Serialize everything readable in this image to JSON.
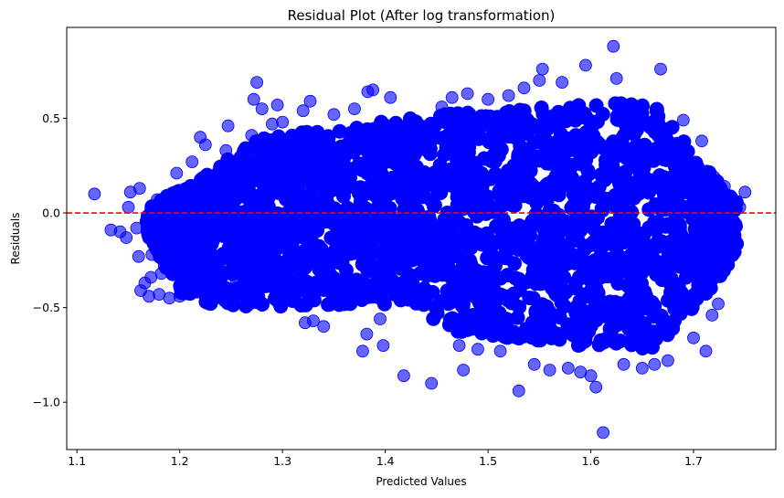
{
  "chart_data": {
    "type": "scatter",
    "title": "Residual Plot (After log transformation)",
    "xlabel": "Predicted Values",
    "ylabel": "Residuals",
    "xlim": [
      1.09,
      1.78
    ],
    "ylim": [
      -1.25,
      0.98
    ],
    "x_ticks": [
      1.1,
      1.2,
      1.3,
      1.4,
      1.5,
      1.6,
      1.7
    ],
    "x_tick_labels": [
      "1.1",
      "1.2",
      "1.3",
      "1.4",
      "1.5",
      "1.6",
      "1.7"
    ],
    "y_ticks": [
      -1.0,
      -0.5,
      0.0,
      0.5
    ],
    "y_tick_labels": [
      "−1.0",
      "−0.5",
      "0.0",
      "0.5"
    ],
    "grid": false,
    "marker_color": "#0000ff",
    "marker_opacity": 0.6,
    "reference_line": {
      "y": 0.0,
      "color": "#ff0000",
      "style": "dashed"
    },
    "points": [
      {
        "x": 1.117,
        "y": 0.1
      },
      {
        "x": 1.133,
        "y": -0.09
      },
      {
        "x": 1.142,
        "y": -0.1
      },
      {
        "x": 1.15,
        "y": 0.03
      },
      {
        "x": 1.148,
        "y": -0.13
      },
      {
        "x": 1.152,
        "y": 0.11
      },
      {
        "x": 1.158,
        "y": -0.08
      },
      {
        "x": 1.16,
        "y": -0.23
      },
      {
        "x": 1.161,
        "y": 0.13
      },
      {
        "x": 1.162,
        "y": -0.41
      },
      {
        "x": 1.166,
        "y": -0.37
      },
      {
        "x": 1.168,
        "y": -0.05
      },
      {
        "x": 1.17,
        "y": -0.44
      },
      {
        "x": 1.172,
        "y": -0.34
      },
      {
        "x": 1.173,
        "y": -0.22
      },
      {
        "x": 1.178,
        "y": 0.07
      },
      {
        "x": 1.18,
        "y": -0.43
      },
      {
        "x": 1.182,
        "y": -0.32
      },
      {
        "x": 1.185,
        "y": -0.28
      },
      {
        "x": 1.19,
        "y": -0.45
      },
      {
        "x": 1.197,
        "y": 0.21
      },
      {
        "x": 1.2,
        "y": -0.44
      },
      {
        "x": 1.205,
        "y": -0.16
      },
      {
        "x": 1.208,
        "y": -0.29
      },
      {
        "x": 1.212,
        "y": 0.27
      },
      {
        "x": 1.22,
        "y": 0.4
      },
      {
        "x": 1.225,
        "y": 0.36
      },
      {
        "x": 1.23,
        "y": 0.19
      },
      {
        "x": 1.245,
        "y": 0.33
      },
      {
        "x": 1.247,
        "y": 0.46
      },
      {
        "x": 1.255,
        "y": -0.36
      },
      {
        "x": 1.27,
        "y": 0.41
      },
      {
        "x": 1.272,
        "y": 0.6
      },
      {
        "x": 1.275,
        "y": 0.69
      },
      {
        "x": 1.28,
        "y": 0.55
      },
      {
        "x": 1.29,
        "y": 0.47
      },
      {
        "x": 1.295,
        "y": 0.57
      },
      {
        "x": 1.3,
        "y": 0.48
      },
      {
        "x": 1.32,
        "y": 0.54
      },
      {
        "x": 1.327,
        "y": 0.59
      },
      {
        "x": 1.322,
        "y": -0.58
      },
      {
        "x": 1.33,
        "y": -0.57
      },
      {
        "x": 1.34,
        "y": -0.6
      },
      {
        "x": 1.35,
        "y": 0.52
      },
      {
        "x": 1.37,
        "y": 0.55
      },
      {
        "x": 1.383,
        "y": 0.64
      },
      {
        "x": 1.388,
        "y": 0.65
      },
      {
        "x": 1.378,
        "y": -0.73
      },
      {
        "x": 1.382,
        "y": -0.64
      },
      {
        "x": 1.395,
        "y": -0.56
      },
      {
        "x": 1.398,
        "y": -0.7
      },
      {
        "x": 1.405,
        "y": 0.61
      },
      {
        "x": 1.418,
        "y": -0.86
      },
      {
        "x": 1.445,
        "y": -0.9
      },
      {
        "x": 1.455,
        "y": 0.56
      },
      {
        "x": 1.465,
        "y": 0.61
      },
      {
        "x": 1.472,
        "y": -0.7
      },
      {
        "x": 1.476,
        "y": -0.83
      },
      {
        "x": 1.48,
        "y": 0.63
      },
      {
        "x": 1.49,
        "y": -0.72
      },
      {
        "x": 1.5,
        "y": 0.6
      },
      {
        "x": 1.512,
        "y": -0.73
      },
      {
        "x": 1.52,
        "y": 0.62
      },
      {
        "x": 1.53,
        "y": -0.94
      },
      {
        "x": 1.535,
        "y": 0.66
      },
      {
        "x": 1.545,
        "y": -0.8
      },
      {
        "x": 1.55,
        "y": 0.7
      },
      {
        "x": 1.553,
        "y": 0.76
      },
      {
        "x": 1.56,
        "y": -0.83
      },
      {
        "x": 1.572,
        "y": 0.69
      },
      {
        "x": 1.578,
        "y": -0.82
      },
      {
        "x": 1.59,
        "y": -0.84
      },
      {
        "x": 1.595,
        "y": 0.78
      },
      {
        "x": 1.6,
        "y": -0.86
      },
      {
        "x": 1.605,
        "y": -0.92
      },
      {
        "x": 1.612,
        "y": -1.16
      },
      {
        "x": 1.622,
        "y": 0.88
      },
      {
        "x": 1.625,
        "y": 0.71
      },
      {
        "x": 1.632,
        "y": -0.8
      },
      {
        "x": 1.65,
        "y": -0.82
      },
      {
        "x": 1.662,
        "y": -0.8
      },
      {
        "x": 1.668,
        "y": 0.76
      },
      {
        "x": 1.675,
        "y": -0.78
      },
      {
        "x": 1.69,
        "y": 0.49
      },
      {
        "x": 1.7,
        "y": -0.66
      },
      {
        "x": 1.708,
        "y": 0.38
      },
      {
        "x": 1.712,
        "y": -0.73
      },
      {
        "x": 1.718,
        "y": -0.54
      },
      {
        "x": 1.72,
        "y": 0.19
      },
      {
        "x": 1.724,
        "y": -0.48
      },
      {
        "x": 1.726,
        "y": -0.22
      },
      {
        "x": 1.728,
        "y": -0.31
      },
      {
        "x": 1.73,
        "y": 0.14
      },
      {
        "x": 1.733,
        "y": 0.01
      },
      {
        "x": 1.745,
        "y": 0.03
      },
      {
        "x": 1.75,
        "y": 0.11
      }
    ]
  }
}
